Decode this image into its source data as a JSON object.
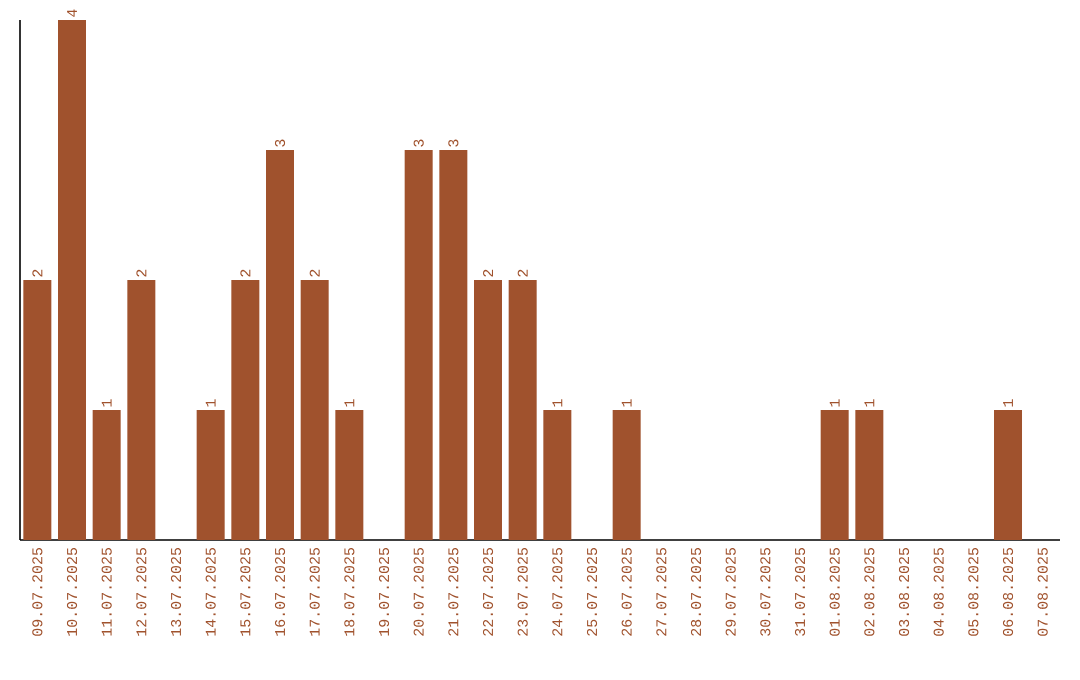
{
  "chart_data": {
    "type": "bar",
    "categories": [
      "09.07.2025",
      "10.07.2025",
      "11.07.2025",
      "12.07.2025",
      "13.07.2025",
      "14.07.2025",
      "15.07.2025",
      "16.07.2025",
      "17.07.2025",
      "18.07.2025",
      "19.07.2025",
      "20.07.2025",
      "21.07.2025",
      "22.07.2025",
      "23.07.2025",
      "24.07.2025",
      "25.07.2025",
      "26.07.2025",
      "27.07.2025",
      "28.07.2025",
      "29.07.2025",
      "30.07.2025",
      "31.07.2025",
      "01.08.2025",
      "02.08.2025",
      "03.08.2025",
      "04.08.2025",
      "05.08.2025",
      "06.08.2025",
      "07.08.2025"
    ],
    "values": [
      2,
      4,
      1,
      2,
      0,
      1,
      2,
      3,
      2,
      1,
      0,
      3,
      3,
      2,
      2,
      1,
      0,
      1,
      0,
      0,
      0,
      0,
      0,
      1,
      1,
      0,
      0,
      0,
      1,
      0
    ],
    "value_labels": [
      "2",
      "4",
      "1",
      "2",
      null,
      "1",
      "2",
      "3",
      "2",
      "1",
      null,
      "3",
      "3",
      "2",
      "2",
      "1",
      null,
      "1",
      null,
      null,
      null,
      null,
      null,
      "1",
      "1",
      null,
      null,
      null,
      "1",
      null
    ],
    "color": "#a0522d"
  }
}
